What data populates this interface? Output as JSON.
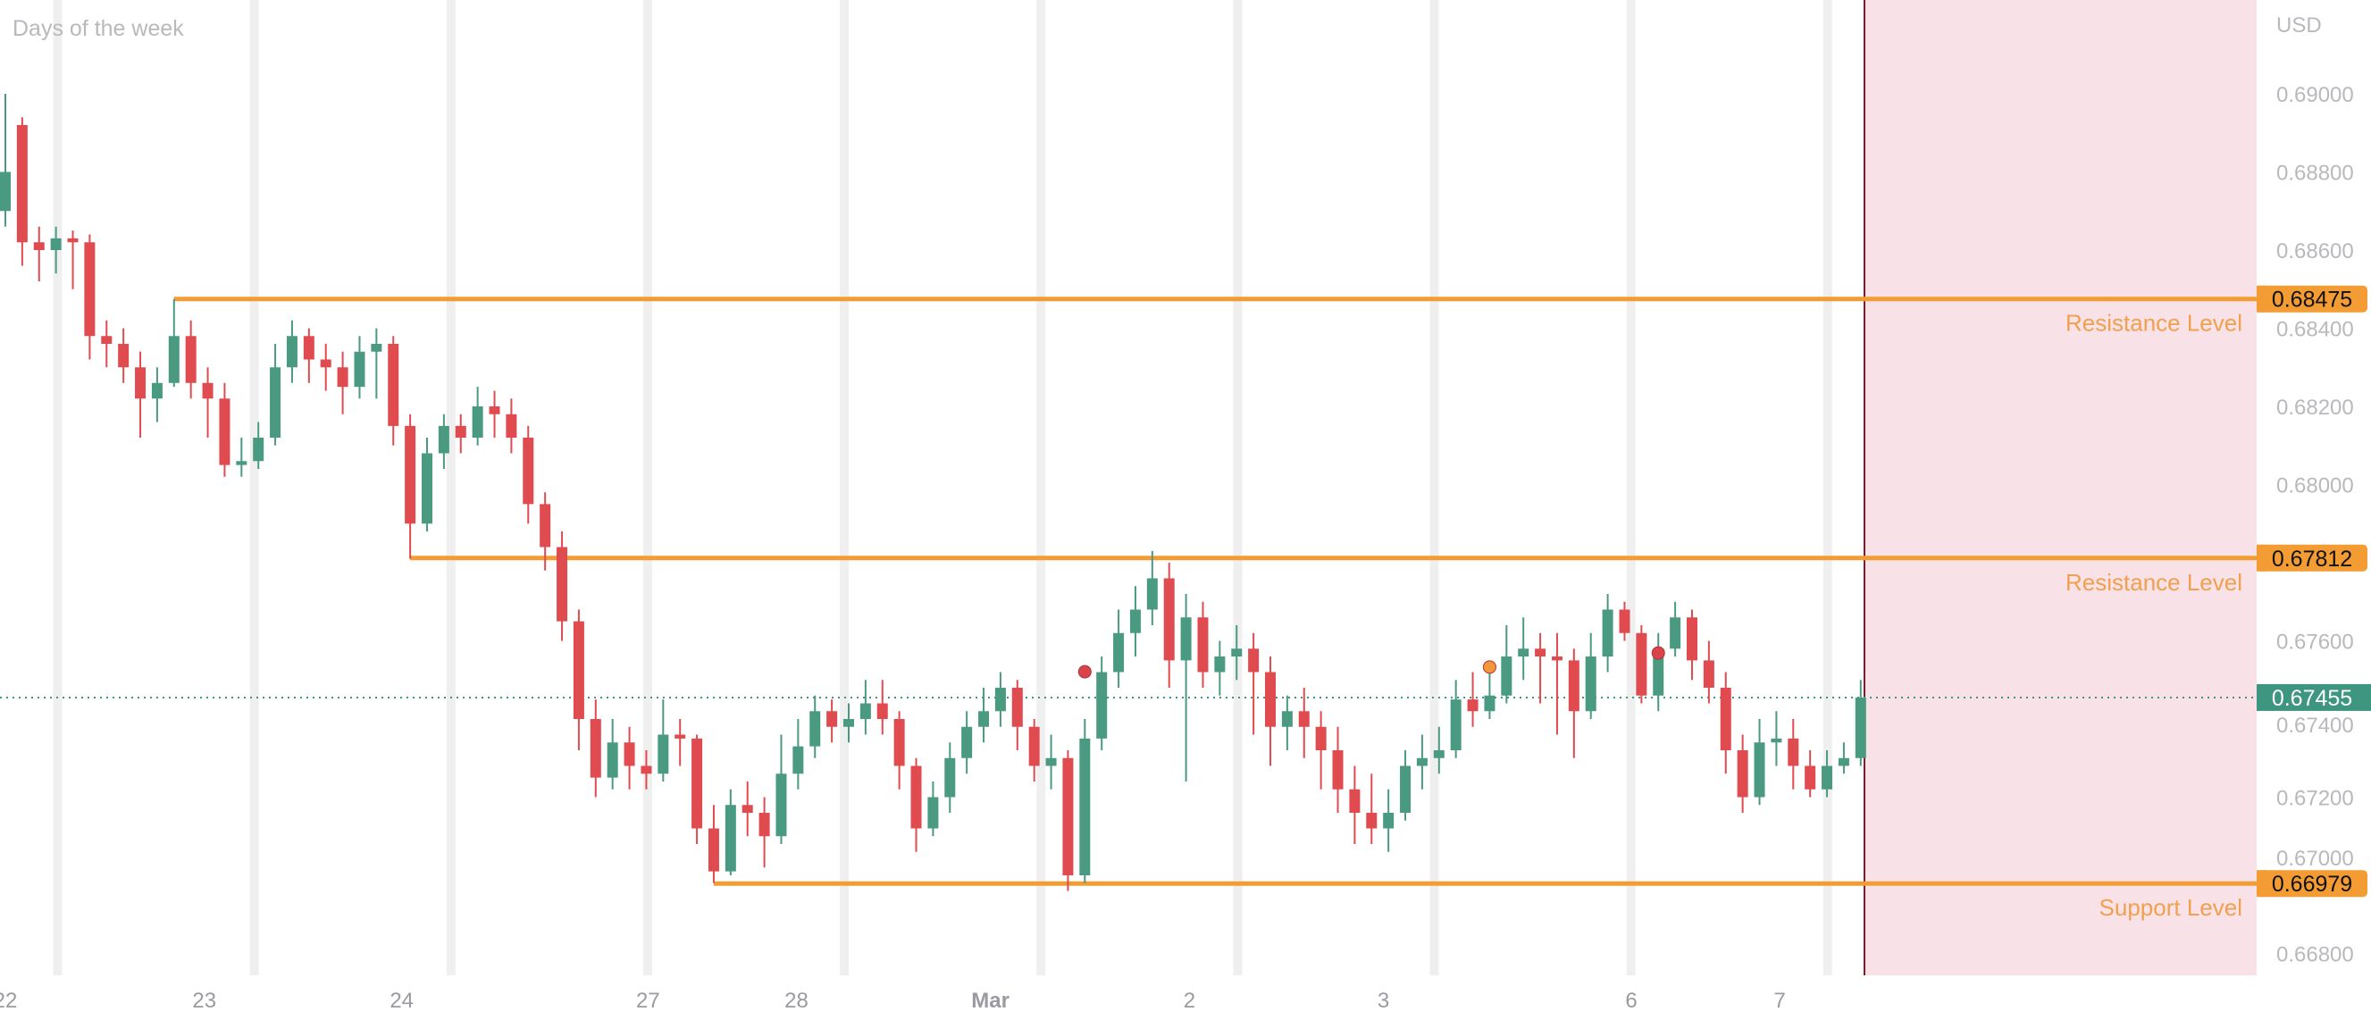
{
  "chart_data": {
    "type": "candlestick",
    "title": "Days of the week",
    "currency": "USD",
    "ylim": [
      0.6674,
      0.6912
    ],
    "y_ticks": [
      "0.69000",
      "0.68800",
      "0.68600",
      "0.68400",
      "0.68200",
      "0.68000",
      "0.67600",
      "0.67400",
      "0.67200",
      "0.67000",
      "0.66800"
    ],
    "x_labels": [
      {
        "label": "22",
        "candle": 0
      },
      {
        "label": "23",
        "candle": 11.8
      },
      {
        "label": "24",
        "candle": 23.5
      },
      {
        "label": "27",
        "candle": 38.1
      },
      {
        "label": "28",
        "candle": 46.9
      },
      {
        "label": "Mar",
        "candle": 58.4
      },
      {
        "label": "2",
        "candle": 70.2
      },
      {
        "label": "3",
        "candle": 81.7
      },
      {
        "label": "6",
        "candle": 96.4
      },
      {
        "label": "7",
        "candle": 105.2
      }
    ],
    "colors": {
      "up": "#4a9a82",
      "down": "#e04b50",
      "level": "#f39c34",
      "current": "#3f9680",
      "future_zone": "#f8e2e7",
      "now_line": "#7a1f2a",
      "grid_band": "#efeff0"
    },
    "levels": [
      {
        "name": "Resistance Level",
        "price": 0.68475,
        "price_label": "0.68475",
        "start_candle": 10
      },
      {
        "name": "Resistance Level",
        "price": 0.67812,
        "price_label": "0.67812",
        "start_candle": 24
      },
      {
        "name": "Support Level",
        "price": 0.66979,
        "price_label": "0.66979",
        "start_candle": 42
      }
    ],
    "current_price": {
      "price": 0.67455,
      "label": "0.67455"
    },
    "markers": [
      {
        "candle": 64,
        "price": 0.67521,
        "color": "#d9434a"
      },
      {
        "candle": 88,
        "price": 0.67533,
        "color": "#f0983a"
      },
      {
        "candle": 98,
        "price": 0.67569,
        "color": "#d9434a"
      }
    ],
    "ohlc_columns": [
      "open",
      "high",
      "low",
      "close"
    ],
    "ohlc": [
      [
        0.687,
        0.69,
        0.6866,
        0.688
      ],
      [
        0.6892,
        0.6894,
        0.6856,
        0.6862
      ],
      [
        0.6862,
        0.6866,
        0.6852,
        0.686
      ],
      [
        0.686,
        0.6866,
        0.6854,
        0.6863
      ],
      [
        0.6863,
        0.6865,
        0.685,
        0.6862
      ],
      [
        0.6862,
        0.6864,
        0.6832,
        0.6838
      ],
      [
        0.6838,
        0.6842,
        0.683,
        0.6836
      ],
      [
        0.6836,
        0.684,
        0.6826,
        0.683
      ],
      [
        0.683,
        0.6834,
        0.6812,
        0.6822
      ],
      [
        0.6822,
        0.683,
        0.6816,
        0.6826
      ],
      [
        0.6826,
        0.68475,
        0.6825,
        0.6838
      ],
      [
        0.6838,
        0.6842,
        0.6822,
        0.6826
      ],
      [
        0.6826,
        0.683,
        0.6812,
        0.6822
      ],
      [
        0.6822,
        0.6826,
        0.6802,
        0.6805
      ],
      [
        0.6805,
        0.6812,
        0.6802,
        0.6806
      ],
      [
        0.6806,
        0.6816,
        0.6804,
        0.6812
      ],
      [
        0.6812,
        0.6836,
        0.681,
        0.683
      ],
      [
        0.683,
        0.6842,
        0.6826,
        0.6838
      ],
      [
        0.6838,
        0.684,
        0.6826,
        0.6832
      ],
      [
        0.6832,
        0.6836,
        0.6824,
        0.683
      ],
      [
        0.683,
        0.6834,
        0.6818,
        0.6825
      ],
      [
        0.6825,
        0.6838,
        0.6822,
        0.6834
      ],
      [
        0.6834,
        0.684,
        0.6822,
        0.6836
      ],
      [
        0.6836,
        0.6838,
        0.681,
        0.6815
      ],
      [
        0.6815,
        0.6818,
        0.6781,
        0.679
      ],
      [
        0.679,
        0.6812,
        0.6788,
        0.6808
      ],
      [
        0.6808,
        0.6818,
        0.6804,
        0.6815
      ],
      [
        0.6815,
        0.6818,
        0.6808,
        0.6812
      ],
      [
        0.6812,
        0.6825,
        0.681,
        0.682
      ],
      [
        0.682,
        0.6824,
        0.6812,
        0.6818
      ],
      [
        0.6818,
        0.6822,
        0.6808,
        0.6812
      ],
      [
        0.6812,
        0.6815,
        0.679,
        0.6795
      ],
      [
        0.6795,
        0.6798,
        0.6778,
        0.6784
      ],
      [
        0.6784,
        0.6788,
        0.676,
        0.6765
      ],
      [
        0.6765,
        0.6768,
        0.6732,
        0.674
      ],
      [
        0.674,
        0.6745,
        0.672,
        0.6725
      ],
      [
        0.6725,
        0.674,
        0.6722,
        0.6734
      ],
      [
        0.6734,
        0.6738,
        0.6722,
        0.6728
      ],
      [
        0.6728,
        0.6732,
        0.6722,
        0.6726
      ],
      [
        0.6726,
        0.6745,
        0.6724,
        0.6736
      ],
      [
        0.6736,
        0.674,
        0.6728,
        0.6735
      ],
      [
        0.6735,
        0.6736,
        0.6708,
        0.6712
      ],
      [
        0.6712,
        0.6718,
        0.6698,
        0.6701
      ],
      [
        0.6701,
        0.6722,
        0.67,
        0.6718
      ],
      [
        0.6718,
        0.6724,
        0.671,
        0.6716
      ],
      [
        0.6716,
        0.672,
        0.6702,
        0.671
      ],
      [
        0.671,
        0.6736,
        0.6708,
        0.6726
      ],
      [
        0.6726,
        0.674,
        0.6722,
        0.6733
      ],
      [
        0.6733,
        0.6746,
        0.673,
        0.6742
      ],
      [
        0.6742,
        0.6745,
        0.6734,
        0.6738
      ],
      [
        0.6738,
        0.6744,
        0.6734,
        0.674
      ],
      [
        0.674,
        0.675,
        0.6736,
        0.6744
      ],
      [
        0.6744,
        0.675,
        0.6736,
        0.674
      ],
      [
        0.674,
        0.6742,
        0.6722,
        0.6728
      ],
      [
        0.6728,
        0.673,
        0.6706,
        0.6712
      ],
      [
        0.6712,
        0.6724,
        0.671,
        0.672
      ],
      [
        0.672,
        0.6734,
        0.6716,
        0.673
      ],
      [
        0.673,
        0.6742,
        0.6726,
        0.6738
      ],
      [
        0.6738,
        0.6748,
        0.6734,
        0.6742
      ],
      [
        0.6742,
        0.6752,
        0.6738,
        0.6748
      ],
      [
        0.6748,
        0.675,
        0.6732,
        0.6738
      ],
      [
        0.6738,
        0.674,
        0.6724,
        0.6728
      ],
      [
        0.6728,
        0.6736,
        0.6722,
        0.673
      ],
      [
        0.673,
        0.6732,
        0.6696,
        0.67
      ],
      [
        0.67,
        0.674,
        0.6698,
        0.6735
      ],
      [
        0.6735,
        0.6756,
        0.6732,
        0.6752
      ],
      [
        0.6752,
        0.6768,
        0.6748,
        0.6762
      ],
      [
        0.6762,
        0.6774,
        0.6756,
        0.6768
      ],
      [
        0.6768,
        0.6783,
        0.6764,
        0.6776
      ],
      [
        0.6776,
        0.678,
        0.6748,
        0.6755
      ],
      [
        0.6755,
        0.6772,
        0.6724,
        0.6766
      ],
      [
        0.6766,
        0.677,
        0.6748,
        0.6752
      ],
      [
        0.6752,
        0.676,
        0.6746,
        0.6756
      ],
      [
        0.6756,
        0.6764,
        0.675,
        0.6758
      ],
      [
        0.6758,
        0.6762,
        0.6736,
        0.6752
      ],
      [
        0.6752,
        0.6756,
        0.6728,
        0.6738
      ],
      [
        0.6738,
        0.6746,
        0.6732,
        0.6742
      ],
      [
        0.6742,
        0.6748,
        0.673,
        0.6738
      ],
      [
        0.6738,
        0.6742,
        0.6722,
        0.6732
      ],
      [
        0.6732,
        0.6738,
        0.6716,
        0.6722
      ],
      [
        0.6722,
        0.6728,
        0.6708,
        0.6716
      ],
      [
        0.6716,
        0.6726,
        0.6708,
        0.6712
      ],
      [
        0.6712,
        0.6722,
        0.6706,
        0.6716
      ],
      [
        0.6716,
        0.6732,
        0.6714,
        0.6728
      ],
      [
        0.6728,
        0.6736,
        0.6722,
        0.673
      ],
      [
        0.673,
        0.6738,
        0.6726,
        0.6732
      ],
      [
        0.6732,
        0.675,
        0.673,
        0.6745
      ],
      [
        0.6745,
        0.6752,
        0.6738,
        0.6742
      ],
      [
        0.6742,
        0.6752,
        0.674,
        0.6746
      ],
      [
        0.6746,
        0.6764,
        0.6744,
        0.6756
      ],
      [
        0.6756,
        0.6766,
        0.675,
        0.6758
      ],
      [
        0.6758,
        0.6762,
        0.6744,
        0.6756
      ],
      [
        0.6756,
        0.6762,
        0.6736,
        0.6755
      ],
      [
        0.6755,
        0.6758,
        0.673,
        0.6742
      ],
      [
        0.6742,
        0.6762,
        0.674,
        0.6756
      ],
      [
        0.6756,
        0.6772,
        0.6752,
        0.6768
      ],
      [
        0.6768,
        0.677,
        0.676,
        0.6762
      ],
      [
        0.6762,
        0.6764,
        0.6744,
        0.6746
      ],
      [
        0.6746,
        0.6762,
        0.6742,
        0.6758
      ],
      [
        0.6758,
        0.677,
        0.6756,
        0.6766
      ],
      [
        0.6766,
        0.6768,
        0.675,
        0.6755
      ],
      [
        0.6755,
        0.676,
        0.6744,
        0.6748
      ],
      [
        0.6748,
        0.6752,
        0.6726,
        0.6732
      ],
      [
        0.6732,
        0.6736,
        0.6716,
        0.672
      ],
      [
        0.672,
        0.674,
        0.6718,
        0.6734
      ],
      [
        0.6734,
        0.6742,
        0.6728,
        0.6735
      ],
      [
        0.6735,
        0.674,
        0.6722,
        0.6728
      ],
      [
        0.6728,
        0.6732,
        0.672,
        0.6722
      ],
      [
        0.6722,
        0.6732,
        0.672,
        0.6728
      ],
      [
        0.6728,
        0.6734,
        0.6726,
        0.673
      ],
      [
        0.673,
        0.675,
        0.6728,
        0.67455
      ]
    ]
  }
}
